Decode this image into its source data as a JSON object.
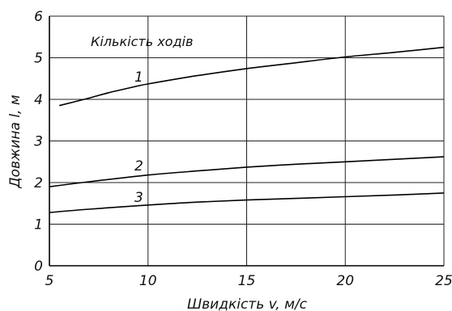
{
  "chart_data": {
    "type": "line",
    "title": "",
    "xlabel": "Швидкість v, м/с",
    "ylabel": "Довжина l, м",
    "xlim": [
      5,
      25
    ],
    "ylim": [
      0,
      6
    ],
    "x_ticks": [
      "5",
      "10",
      "15",
      "20",
      "25"
    ],
    "y_ticks": [
      "0",
      "1",
      "2",
      "3",
      "4",
      "5",
      "6"
    ],
    "grid": true,
    "annotation": "Кількість ходів",
    "series": [
      {
        "name": "1",
        "x": [
          5.5,
          7,
          8,
          9,
          10,
          12.5,
          15,
          17.5,
          20,
          22.5,
          25
        ],
        "y": [
          3.85,
          4.03,
          4.16,
          4.27,
          4.37,
          4.57,
          4.74,
          4.88,
          5.02,
          5.13,
          5.25
        ]
      },
      {
        "name": "2",
        "x": [
          5,
          7,
          10,
          12.5,
          15,
          17.5,
          20,
          22.5,
          25
        ],
        "y": [
          1.9,
          2.02,
          2.18,
          2.28,
          2.37,
          2.44,
          2.5,
          2.56,
          2.62
        ]
      },
      {
        "name": "3",
        "x": [
          5,
          7,
          10,
          12.5,
          15,
          17.5,
          20,
          22.5,
          25
        ],
        "y": [
          1.28,
          1.36,
          1.46,
          1.53,
          1.58,
          1.62,
          1.66,
          1.7,
          1.75
        ]
      }
    ]
  }
}
